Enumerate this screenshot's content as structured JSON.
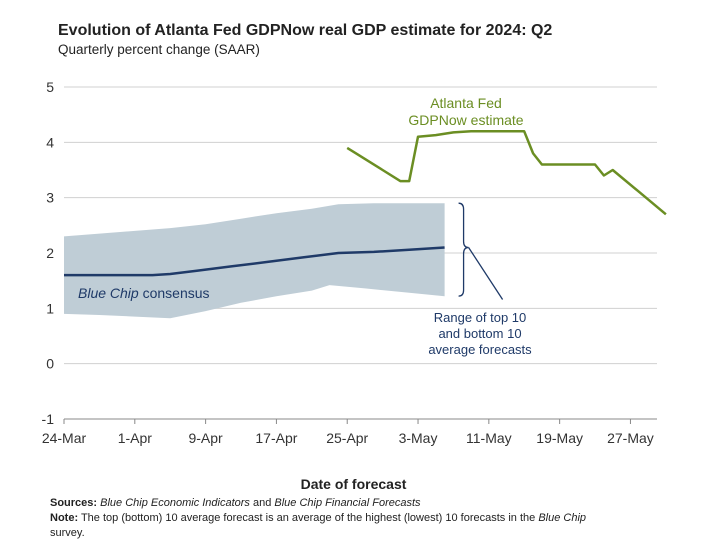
{
  "title": "Evolution of Atlanta Fed GDPNow real GDP estimate for 2024: Q2",
  "subtitle": "Quarterly percent change (SAAR)",
  "xlabel": "Date of forecast",
  "footer": {
    "sources_label": "Sources:",
    "sources_italic_1": "Blue Chip Economic Indicators",
    "sources_and": " and ",
    "sources_italic_2": "Blue Chip Financial Forecasts",
    "note_label": "Note:",
    "note_text": " The top (bottom) 10 average forecast is an average of the highest (lowest) 10 forecasts in the ",
    "note_italic": "Blue Chip",
    "note_cont": "survey."
  },
  "annotations": {
    "gdpnow_line1": "Atlanta Fed",
    "gdpnow_line2": "GDPNow estimate",
    "bluechip_italic": "Blue Chip",
    "bluechip_rest": " consensus",
    "range_line1": "Range of top 10",
    "range_line2": "and bottom 10",
    "range_line3": "average forecasts"
  },
  "colors": {
    "gdpnow": "#6b8e23",
    "consensus": "#1f3a68",
    "band": "#bfcdd6",
    "annotation_range": "#1f3a68",
    "grid": "#d0d0d0"
  },
  "chart_data": {
    "type": "line",
    "x_axis": {
      "type": "date",
      "ticks": [
        "24-Mar",
        "1-Apr",
        "9-Apr",
        "17-Apr",
        "25-Apr",
        "3-May",
        "11-May",
        "19-May",
        "27-May"
      ],
      "tick_dates": [
        "2024-03-24",
        "2024-04-01",
        "2024-04-09",
        "2024-04-17",
        "2024-04-25",
        "2024-05-03",
        "2024-05-11",
        "2024-05-19",
        "2024-05-27"
      ],
      "range": [
        "2024-03-24",
        "2024-06-01"
      ]
    },
    "y_axis": {
      "ticks": [
        -1,
        0,
        1,
        2,
        3,
        4,
        5
      ],
      "ylim": [
        -1,
        5
      ],
      "grid": true
    },
    "series": [
      {
        "name": "Atlanta Fed GDPNow estimate",
        "type": "line",
        "points": [
          [
            "2024-04-25",
            3.9
          ],
          [
            "2024-04-26",
            3.8
          ],
          [
            "2024-04-27",
            3.7
          ],
          [
            "2024-04-29",
            3.5
          ],
          [
            "2024-05-01",
            3.3
          ],
          [
            "2024-05-02",
            3.3
          ],
          [
            "2024-05-03",
            4.1
          ],
          [
            "2024-05-05",
            4.13
          ],
          [
            "2024-05-07",
            4.18
          ],
          [
            "2024-05-09",
            4.2
          ],
          [
            "2024-05-15",
            4.2
          ],
          [
            "2024-05-16",
            3.8
          ],
          [
            "2024-05-17",
            3.6
          ],
          [
            "2024-05-23",
            3.6
          ],
          [
            "2024-05-24",
            3.4
          ],
          [
            "2024-05-25",
            3.5
          ],
          [
            "2024-05-28",
            3.1
          ],
          [
            "2024-05-31",
            2.7
          ]
        ]
      },
      {
        "name": "Blue Chip consensus",
        "type": "line",
        "points": [
          [
            "2024-03-24",
            1.6
          ],
          [
            "2024-04-03",
            1.6
          ],
          [
            "2024-04-05",
            1.62
          ],
          [
            "2024-04-08",
            1.68
          ],
          [
            "2024-04-12",
            1.76
          ],
          [
            "2024-04-16",
            1.84
          ],
          [
            "2024-04-20",
            1.92
          ],
          [
            "2024-04-24",
            2.0
          ],
          [
            "2024-04-28",
            2.02
          ],
          [
            "2024-05-02",
            2.06
          ],
          [
            "2024-05-06",
            2.1
          ]
        ]
      },
      {
        "name": "Range of top 10 and bottom 10 average forecasts",
        "type": "area_band",
        "upper": [
          [
            "2024-03-24",
            2.3
          ],
          [
            "2024-03-28",
            2.35
          ],
          [
            "2024-04-01",
            2.4
          ],
          [
            "2024-04-05",
            2.45
          ],
          [
            "2024-04-09",
            2.52
          ],
          [
            "2024-04-13",
            2.62
          ],
          [
            "2024-04-17",
            2.72
          ],
          [
            "2024-04-21",
            2.8
          ],
          [
            "2024-04-24",
            2.88
          ],
          [
            "2024-04-28",
            2.9
          ],
          [
            "2024-05-06",
            2.9
          ]
        ],
        "lower": [
          [
            "2024-03-24",
            0.9
          ],
          [
            "2024-03-28",
            0.88
          ],
          [
            "2024-04-01",
            0.85
          ],
          [
            "2024-04-05",
            0.82
          ],
          [
            "2024-04-09",
            0.95
          ],
          [
            "2024-04-13",
            1.1
          ],
          [
            "2024-04-17",
            1.22
          ],
          [
            "2024-04-21",
            1.32
          ],
          [
            "2024-04-23",
            1.42
          ],
          [
            "2024-04-27",
            1.36
          ],
          [
            "2024-05-02",
            1.28
          ],
          [
            "2024-05-06",
            1.22
          ]
        ]
      }
    ]
  }
}
